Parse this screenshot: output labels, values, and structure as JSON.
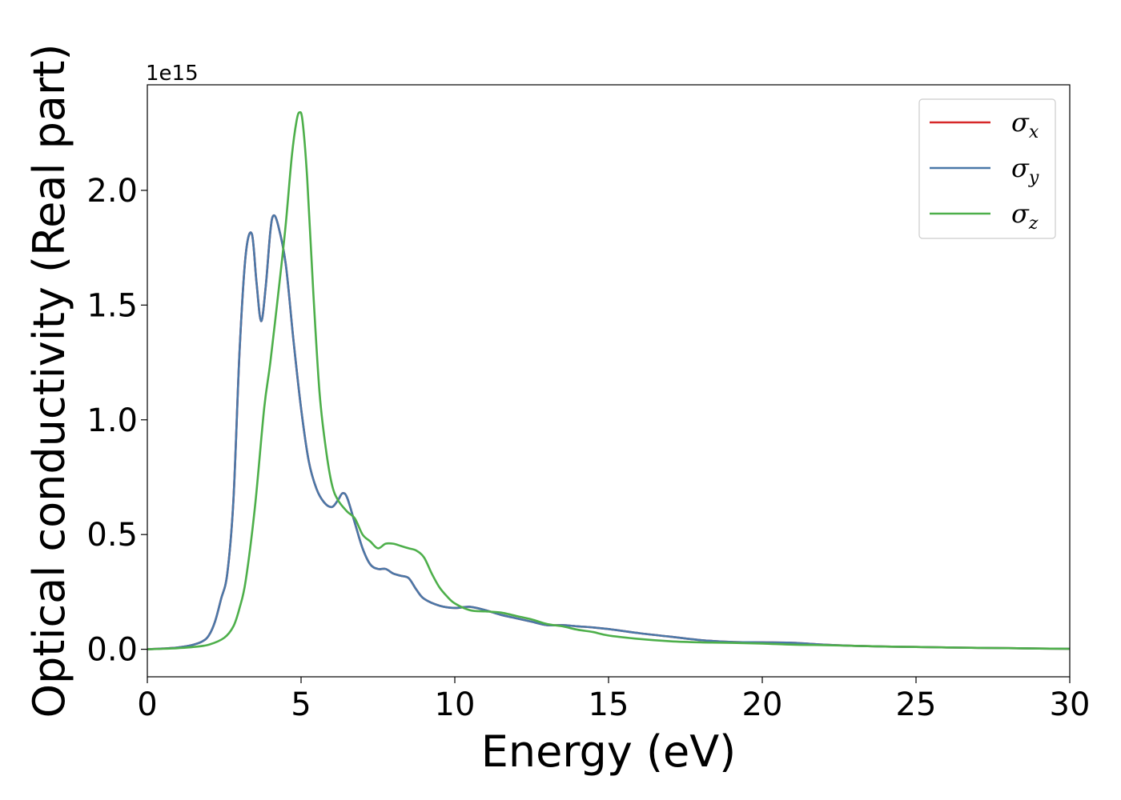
{
  "chart_data": {
    "type": "line",
    "title": "",
    "xlabel": "Energy (eV)",
    "ylabel": "Optical conductivity (Real part)",
    "y_offset_label": "1e15",
    "xlim": [
      0,
      30
    ],
    "ylim": [
      -0.12,
      2.46
    ],
    "x_ticks": [
      0,
      5,
      10,
      15,
      20,
      25,
      30
    ],
    "x_tick_labels": [
      "0",
      "5",
      "10",
      "15",
      "20",
      "25",
      "30"
    ],
    "y_ticks": [
      0.0,
      0.5,
      1.0,
      1.5,
      2.0
    ],
    "y_tick_labels": [
      "0.0",
      "0.5",
      "1.0",
      "1.5",
      "2.0"
    ],
    "grid": false,
    "legend_position": "top-right",
    "series": [
      {
        "name": "σx",
        "legend_base": "σ",
        "legend_sub": "x",
        "color": "#d62728",
        "x": [
          0,
          0.5,
          1.0,
          1.5,
          1.8,
          2.0,
          2.2,
          2.4,
          2.6,
          2.8,
          3.0,
          3.2,
          3.4,
          3.55,
          3.7,
          3.85,
          4.0,
          4.1,
          4.25,
          4.5,
          4.75,
          5.0,
          5.25,
          5.5,
          5.75,
          6.0,
          6.2,
          6.35,
          6.5,
          6.75,
          7.0,
          7.25,
          7.5,
          7.75,
          8.0,
          8.25,
          8.5,
          8.75,
          9.0,
          9.5,
          10.0,
          10.5,
          11.0,
          11.5,
          12.0,
          12.5,
          13.0,
          13.5,
          14.0,
          14.5,
          15.0,
          16.0,
          17.0,
          18.0,
          19.0,
          20.0,
          21.0,
          22.0,
          23.0,
          24.0,
          25.0,
          26.0,
          27.0,
          28.0,
          29.0,
          30.0
        ],
        "y": [
          0.0,
          0.003,
          0.008,
          0.02,
          0.035,
          0.06,
          0.12,
          0.22,
          0.33,
          0.65,
          1.3,
          1.72,
          1.81,
          1.6,
          1.43,
          1.58,
          1.82,
          1.89,
          1.85,
          1.68,
          1.35,
          1.05,
          0.82,
          0.7,
          0.64,
          0.62,
          0.65,
          0.68,
          0.66,
          0.55,
          0.44,
          0.37,
          0.35,
          0.35,
          0.33,
          0.32,
          0.31,
          0.26,
          0.22,
          0.19,
          0.18,
          0.185,
          0.17,
          0.15,
          0.135,
          0.12,
          0.105,
          0.105,
          0.1,
          0.095,
          0.088,
          0.07,
          0.055,
          0.04,
          0.032,
          0.03,
          0.028,
          0.02,
          0.015,
          0.012,
          0.01,
          0.008,
          0.006,
          0.005,
          0.003,
          0.002
        ]
      },
      {
        "name": "σy",
        "legend_base": "σ",
        "legend_sub": "y",
        "color": "#4a78a8",
        "x": [
          0,
          0.5,
          1.0,
          1.5,
          1.8,
          2.0,
          2.2,
          2.4,
          2.6,
          2.8,
          3.0,
          3.2,
          3.4,
          3.55,
          3.7,
          3.85,
          4.0,
          4.1,
          4.25,
          4.5,
          4.75,
          5.0,
          5.25,
          5.5,
          5.75,
          6.0,
          6.2,
          6.35,
          6.5,
          6.75,
          7.0,
          7.25,
          7.5,
          7.75,
          8.0,
          8.25,
          8.5,
          8.75,
          9.0,
          9.5,
          10.0,
          10.5,
          11.0,
          11.5,
          12.0,
          12.5,
          13.0,
          13.5,
          14.0,
          14.5,
          15.0,
          16.0,
          17.0,
          18.0,
          19.0,
          20.0,
          21.0,
          22.0,
          23.0,
          24.0,
          25.0,
          26.0,
          27.0,
          28.0,
          29.0,
          30.0
        ],
        "y": [
          0.0,
          0.003,
          0.008,
          0.02,
          0.035,
          0.06,
          0.12,
          0.22,
          0.33,
          0.65,
          1.3,
          1.72,
          1.81,
          1.6,
          1.43,
          1.58,
          1.82,
          1.89,
          1.85,
          1.68,
          1.35,
          1.05,
          0.82,
          0.7,
          0.64,
          0.62,
          0.65,
          0.68,
          0.66,
          0.55,
          0.44,
          0.37,
          0.35,
          0.35,
          0.33,
          0.32,
          0.31,
          0.26,
          0.22,
          0.19,
          0.18,
          0.185,
          0.17,
          0.15,
          0.135,
          0.12,
          0.105,
          0.105,
          0.1,
          0.095,
          0.088,
          0.07,
          0.055,
          0.04,
          0.032,
          0.03,
          0.028,
          0.02,
          0.015,
          0.012,
          0.01,
          0.008,
          0.006,
          0.005,
          0.003,
          0.002
        ]
      },
      {
        "name": "σz",
        "legend_base": "σ",
        "legend_sub": "z",
        "color": "#4daf4a",
        "x": [
          0,
          0.5,
          1.0,
          1.5,
          2.0,
          2.5,
          2.8,
          3.0,
          3.2,
          3.5,
          3.8,
          4.0,
          4.3,
          4.5,
          4.7,
          4.85,
          4.95,
          5.05,
          5.2,
          5.4,
          5.6,
          5.8,
          6.0,
          6.2,
          6.5,
          6.75,
          7.0,
          7.25,
          7.5,
          7.75,
          8.0,
          8.25,
          8.5,
          8.75,
          9.0,
          9.25,
          9.5,
          9.75,
          10.0,
          10.5,
          11.0,
          11.5,
          12.0,
          12.5,
          13.0,
          13.5,
          14.0,
          14.5,
          15.0,
          16.0,
          17.0,
          18.0,
          19.0,
          20.0,
          21.0,
          22.0,
          23.0,
          24.0,
          25.0,
          26.0,
          27.0,
          28.0,
          29.0,
          30.0
        ],
        "y": [
          0.0,
          0.002,
          0.005,
          0.01,
          0.02,
          0.05,
          0.1,
          0.18,
          0.3,
          0.62,
          1.05,
          1.25,
          1.6,
          1.85,
          2.15,
          2.3,
          2.34,
          2.3,
          2.05,
          1.55,
          1.12,
          0.88,
          0.72,
          0.65,
          0.6,
          0.57,
          0.5,
          0.47,
          0.44,
          0.46,
          0.46,
          0.45,
          0.44,
          0.43,
          0.4,
          0.33,
          0.27,
          0.23,
          0.2,
          0.17,
          0.165,
          0.16,
          0.145,
          0.13,
          0.11,
          0.1,
          0.085,
          0.075,
          0.06,
          0.045,
          0.035,
          0.03,
          0.028,
          0.025,
          0.02,
          0.018,
          0.015,
          0.012,
          0.01,
          0.008,
          0.006,
          0.005,
          0.003,
          0.002
        ]
      }
    ]
  }
}
